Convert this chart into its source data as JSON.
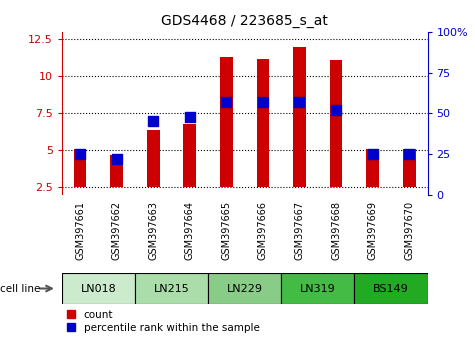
{
  "title": "GDS4468 / 223685_s_at",
  "samples": [
    "GSM397661",
    "GSM397662",
    "GSM397663",
    "GSM397664",
    "GSM397665",
    "GSM397666",
    "GSM397667",
    "GSM397668",
    "GSM397669",
    "GSM397670"
  ],
  "count_values": [
    5.1,
    4.7,
    6.4,
    6.8,
    11.3,
    11.2,
    12.0,
    11.1,
    5.1,
    5.1
  ],
  "percentile_values": [
    25,
    22,
    45,
    48,
    57,
    57,
    57,
    52,
    25,
    25
  ],
  "cell_lines": [
    {
      "name": "LN018",
      "start": 0,
      "end": 1,
      "color": "#d9f0d9"
    },
    {
      "name": "LN215",
      "start": 2,
      "end": 3,
      "color": "#b8e0b8"
    },
    {
      "name": "LN229",
      "start": 4,
      "end": 5,
      "color": "#90cd90"
    },
    {
      "name": "LN319",
      "start": 6,
      "end": 7,
      "color": "#5ab85a"
    },
    {
      "name": "BS149",
      "start": 8,
      "end": 9,
      "color": "#3db83d"
    }
  ],
  "ylim_left": [
    2.0,
    13.0
  ],
  "ylim_right": [
    0,
    100
  ],
  "yticks_left": [
    2.5,
    5.0,
    7.5,
    10.0,
    12.5
  ],
  "yticks_right": [
    0,
    25,
    50,
    75,
    100
  ],
  "bar_color": "#cc0000",
  "dot_color": "#0000cc",
  "bar_width": 0.35,
  "dot_size": 45,
  "bg_plot": "#ffffff",
  "bg_tick_area": "#d0d0d0",
  "cell_line_colors": [
    "#cceecc",
    "#aaddaa",
    "#88cc88",
    "#44bb44",
    "#22aa22"
  ]
}
